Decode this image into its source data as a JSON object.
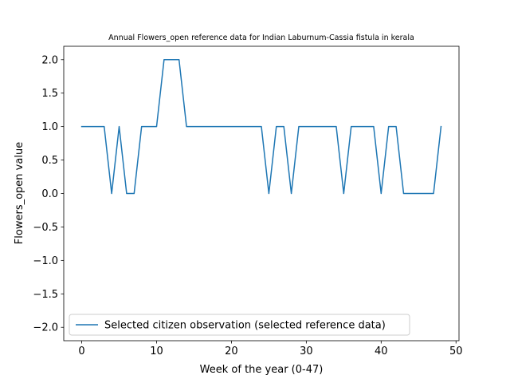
{
  "chart_data": {
    "type": "line",
    "title": "Annual Flowers_open reference data for Indian Laburnum-Cassia fistula in kerala",
    "xlabel": "Week of the year (0-47)",
    "ylabel": "Flowers_open value",
    "xlim": [
      -2.4,
      50.4
    ],
    "ylim": [
      -2.2,
      2.2
    ],
    "xticks": [
      0,
      10,
      20,
      30,
      40,
      50
    ],
    "yticks": [
      -2.0,
      -1.5,
      -1.0,
      -0.5,
      0.0,
      0.5,
      1.0,
      1.5,
      2.0
    ],
    "xtick_labels": [
      "0",
      "10",
      "20",
      "30",
      "40",
      "50"
    ],
    "ytick_labels": [
      "−2.0",
      "−1.5",
      "−1.0",
      "−0.5",
      "0.0",
      "0.5",
      "1.0",
      "1.5",
      "2.0"
    ],
    "grid": false,
    "legend_position": "lower-left",
    "series": [
      {
        "name": "Selected citizen observation (selected reference data)",
        "color": "#1f77b4",
        "x": [
          0,
          1,
          2,
          3,
          4,
          5,
          6,
          7,
          8,
          9,
          10,
          11,
          12,
          13,
          14,
          15,
          16,
          17,
          18,
          19,
          20,
          21,
          22,
          23,
          24,
          25,
          26,
          27,
          28,
          29,
          30,
          31,
          32,
          33,
          34,
          35,
          36,
          37,
          38,
          39,
          40,
          41,
          42,
          43,
          44,
          45,
          46,
          47,
          48
        ],
        "values": [
          1,
          1,
          1,
          1,
          0,
          1,
          0,
          0,
          1,
          1,
          1,
          2,
          2,
          2,
          1,
          1,
          1,
          1,
          1,
          1,
          1,
          1,
          1,
          1,
          1,
          0,
          1,
          1,
          0,
          1,
          1,
          1,
          1,
          1,
          1,
          0,
          1,
          1,
          1,
          1,
          0,
          1,
          1,
          0,
          0,
          0,
          0,
          0,
          1
        ]
      }
    ]
  }
}
